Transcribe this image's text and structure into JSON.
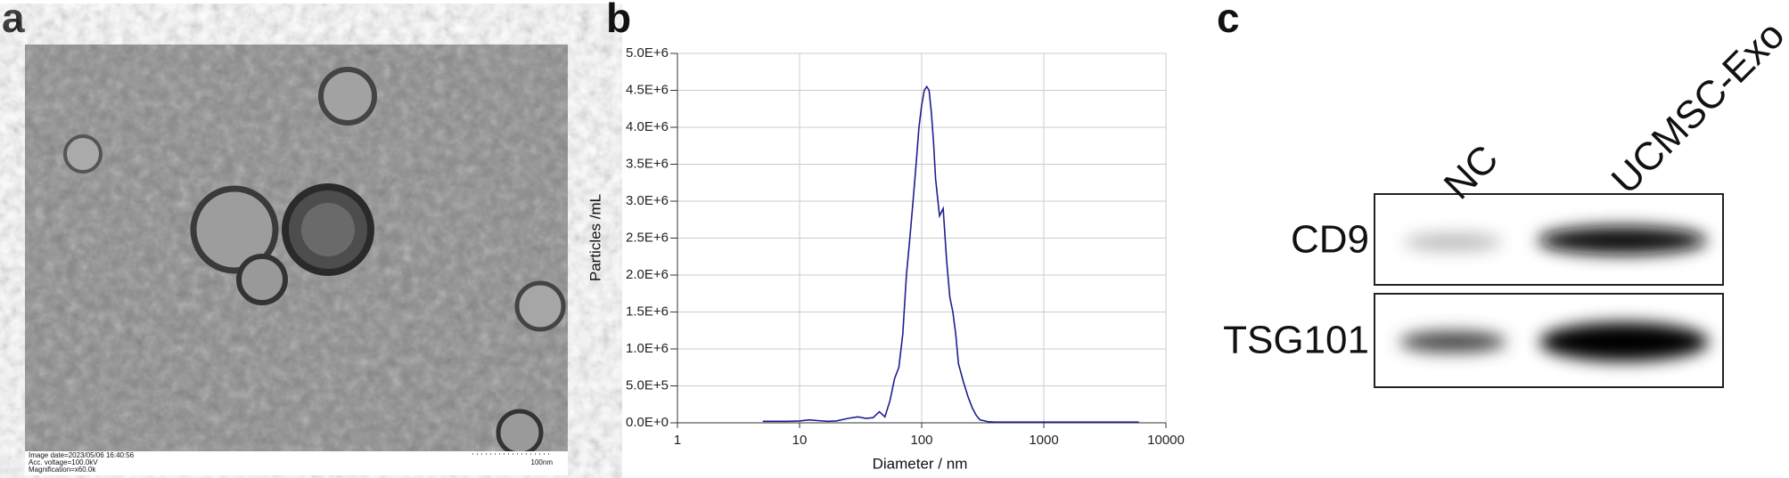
{
  "panel_labels": [
    "a",
    "b",
    "c"
  ],
  "tem_image": {
    "caption_lines": [
      "Image date=2023/05/06 16:40:56",
      "Acc. voltage=100.0kV",
      "Magnification=x60.0k"
    ],
    "scale_bar": "100nm"
  },
  "chart_data": {
    "type": "line",
    "xlabel": "Diameter / nm",
    "ylabel": "Particles /mL",
    "color": "#1f1f8f",
    "log_x": true,
    "grid": true,
    "x": [
      5,
      8,
      10,
      12,
      14,
      17,
      20,
      25,
      30,
      35,
      40,
      45,
      50,
      55,
      60,
      65,
      70,
      75,
      80,
      85,
      90,
      95,
      100,
      105,
      110,
      115,
      120,
      125,
      130,
      140,
      150,
      160,
      170,
      180,
      190,
      200,
      220,
      240,
      260,
      280,
      300,
      350,
      400,
      500,
      700,
      1000,
      2000,
      6000
    ],
    "values": [
      20000,
      20000,
      25000,
      40000,
      30000,
      20000,
      25000,
      60000,
      80000,
      60000,
      70000,
      150000,
      80000,
      300000,
      600000,
      750000,
      1200000,
      2000000,
      2500000,
      3000000,
      3500000,
      4000000,
      4300000,
      4500000,
      4550000,
      4500000,
      4200000,
      3800000,
      3300000,
      2800000,
      2900000,
      2200000,
      1700000,
      1500000,
      1200000,
      800000,
      550000,
      350000,
      200000,
      100000,
      40000,
      15000,
      10000,
      10000,
      10000,
      10000,
      10000,
      10000
    ],
    "xlim": [
      1,
      10000
    ],
    "xticks": [
      1,
      10,
      100,
      1000,
      10000
    ],
    "ylim": [
      0,
      5000000
    ],
    "yticks": [
      {
        "value": 0,
        "label": "0.0E+0"
      },
      {
        "value": 500000,
        "label": "5.0E+5"
      },
      {
        "value": 1000000,
        "label": "1.0E+6"
      },
      {
        "value": 1500000,
        "label": "1.5E+6"
      },
      {
        "value": 2000000,
        "label": "2.0E+6"
      },
      {
        "value": 2500000,
        "label": "2.5E+6"
      },
      {
        "value": 3000000,
        "label": "3.0E+6"
      },
      {
        "value": 3500000,
        "label": "3.5E+6"
      },
      {
        "value": 4000000,
        "label": "4.0E+6"
      },
      {
        "value": 4500000,
        "label": "4.5E+6"
      },
      {
        "value": 5000000,
        "label": "5.0E+6"
      }
    ]
  },
  "western_blot": {
    "lanes": [
      "NC",
      "UCMSC-Exo"
    ],
    "bands": [
      "CD9",
      "TSG101"
    ]
  }
}
